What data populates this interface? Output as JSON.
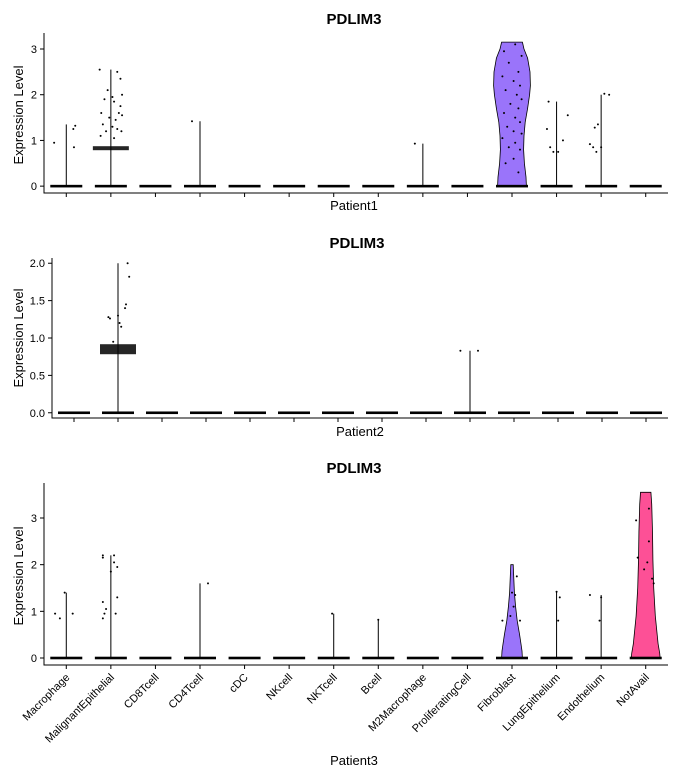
{
  "chart_data": [
    {
      "type": "violin",
      "title": "PDLIM3",
      "xlabel": "Patient1",
      "ylabel": "Expression Level",
      "ylim": [
        -0.15,
        3.35
      ],
      "yticks": [
        0,
        1,
        2,
        3
      ],
      "ytick_labels": [
        "0",
        "1",
        "2",
        "3"
      ],
      "show_category_labels": false,
      "categories": [
        "Macrophage",
        "MalignantEpithelial",
        "CD8Tcell",
        "CD4Tcell",
        "cDC",
        "NKcell",
        "NKTcell",
        "Bcell",
        "M2Macrophage",
        "ProliferatingCell",
        "Fibroblast",
        "LungEpithelium",
        "Endothelium",
        "NotAvail"
      ],
      "violins": [
        {
          "category": "Macrophage",
          "max": 1.35,
          "density": [],
          "points": [
            [
              -0.38,
              0.95
            ],
            [
              0.22,
              1.25
            ],
            [
              0.28,
              1.32
            ],
            [
              0.24,
              0.85
            ]
          ]
        },
        {
          "category": "MalignantEpithelial",
          "max": 2.55,
          "density": [],
          "points": [
            [
              -0.35,
              2.55
            ],
            [
              0.2,
              2.5
            ],
            [
              0.3,
              2.35
            ],
            [
              0.35,
              2.0
            ],
            [
              -0.1,
              2.1
            ],
            [
              0.05,
              1.95
            ],
            [
              -0.2,
              1.9
            ],
            [
              0.1,
              1.85
            ],
            [
              0.3,
              1.75
            ],
            [
              -0.3,
              1.6
            ],
            [
              0.25,
              1.6
            ],
            [
              0.35,
              1.55
            ],
            [
              -0.05,
              1.5
            ],
            [
              0.15,
              1.45
            ],
            [
              -0.25,
              1.35
            ],
            [
              0.05,
              1.3
            ],
            [
              0.2,
              1.25
            ],
            [
              0.33,
              1.2
            ],
            [
              -0.15,
              1.2
            ],
            [
              -0.32,
              1.1
            ],
            [
              0.1,
              1.05
            ]
          ]
        },
        {
          "category": "CD8Tcell",
          "max": 0,
          "density": [],
          "points": []
        },
        {
          "category": "CD4Tcell",
          "max": 1.42,
          "density": [],
          "points": [
            [
              -0.25,
              1.42
            ]
          ]
        },
        {
          "category": "cDC",
          "max": 0,
          "density": [],
          "points": []
        },
        {
          "category": "NKcell",
          "max": 0,
          "density": [],
          "points": []
        },
        {
          "category": "NKTcell",
          "max": 0,
          "density": [],
          "points": []
        },
        {
          "category": "Bcell",
          "max": 0,
          "density": [],
          "points": []
        },
        {
          "category": "M2Macrophage",
          "max": 0.93,
          "density": [],
          "points": [
            [
              -0.25,
              0.93
            ]
          ]
        },
        {
          "category": "ProliferatingCell",
          "max": 0,
          "density": [],
          "points": []
        },
        {
          "category": "Fibroblast",
          "max": 3.15,
          "density": [
            [
              3.15,
              0.52
            ],
            [
              3.0,
              0.6
            ],
            [
              2.8,
              0.78
            ],
            [
              2.5,
              0.9
            ],
            [
              2.2,
              0.92
            ],
            [
              2.0,
              0.88
            ],
            [
              1.7,
              0.78
            ],
            [
              1.4,
              0.66
            ],
            [
              1.1,
              0.6
            ],
            [
              0.8,
              0.58
            ],
            [
              0.5,
              0.62
            ],
            [
              0.2,
              0.7
            ],
            [
              0,
              0.72
            ]
          ],
          "points": [
            [
              -0.25,
              2.95
            ],
            [
              0.1,
              3.1
            ],
            [
              0.3,
              2.85
            ],
            [
              -0.1,
              2.7
            ],
            [
              0.2,
              2.5
            ],
            [
              -0.3,
              2.4
            ],
            [
              0.05,
              2.3
            ],
            [
              0.25,
              2.2
            ],
            [
              -0.2,
              2.1
            ],
            [
              0.15,
              2.0
            ],
            [
              0.3,
              1.9
            ],
            [
              -0.05,
              1.8
            ],
            [
              0.2,
              1.7
            ],
            [
              -0.25,
              1.6
            ],
            [
              0.1,
              1.5
            ],
            [
              0.25,
              1.4
            ],
            [
              -0.15,
              1.3
            ],
            [
              0.05,
              1.2
            ],
            [
              0.3,
              1.15
            ],
            [
              -0.3,
              1.05
            ],
            [
              0.1,
              0.95
            ],
            [
              -0.1,
              0.85
            ],
            [
              0.25,
              0.8
            ],
            [
              0.05,
              0.6
            ],
            [
              -0.2,
              0.5
            ],
            [
              0.2,
              0.3
            ]
          ]
        },
        {
          "category": "LungEpithelium",
          "max": 1.85,
          "density": [],
          "points": [
            [
              -0.25,
              1.85
            ],
            [
              0.35,
              1.55
            ],
            [
              -0.3,
              1.25
            ],
            [
              0.2,
              1.0
            ],
            [
              -0.2,
              0.85
            ],
            [
              0.05,
              0.75
            ],
            [
              -0.1,
              0.75
            ]
          ]
        },
        {
          "category": "Endothelium",
          "max": 2.0,
          "density": [],
          "points": [
            [
              0.1,
              2.02
            ],
            [
              0.25,
              2.0
            ],
            [
              -0.1,
              1.35
            ],
            [
              -0.2,
              1.28
            ],
            [
              -0.35,
              0.92
            ],
            [
              -0.25,
              0.85
            ],
            [
              0.0,
              0.85
            ],
            [
              -0.15,
              0.75
            ]
          ]
        },
        {
          "category": "NotAvail",
          "max": 0,
          "density": [],
          "points": []
        }
      ]
    },
    {
      "type": "violin",
      "title": "PDLIM3",
      "xlabel": "Patient2",
      "ylabel": "Expression Level",
      "ylim": [
        -0.07,
        2.07
      ],
      "yticks": [
        0,
        0.5,
        1,
        1.5,
        2
      ],
      "ytick_labels": [
        "0.0",
        "0.5",
        "1.0",
        "1.5",
        "2.0"
      ],
      "show_category_labels": false,
      "categories": [
        "Macrophage",
        "MalignantEpithelial",
        "CD8Tcell",
        "CD4Tcell",
        "cDC",
        "NKcell",
        "NKTcell",
        "Bcell",
        "M2Macrophage",
        "ProliferatingCell",
        "Fibroblast",
        "LungEpithelium",
        "Endothelium",
        "NotAvail"
      ],
      "violins": [
        {
          "category": "Macrophage",
          "max": 0,
          "density": [],
          "points": []
        },
        {
          "category": "MalignantEpithelial",
          "max": 2.0,
          "density": [],
          "points": [
            [
              0.3,
              2.0
            ],
            [
              0.35,
              1.82
            ],
            [
              0.25,
              1.45
            ],
            [
              0.22,
              1.4
            ],
            [
              0.0,
              1.3
            ],
            [
              -0.3,
              1.28
            ],
            [
              -0.25,
              1.26
            ],
            [
              0.05,
              1.2
            ],
            [
              0.1,
              1.15
            ],
            [
              -0.15,
              0.95
            ]
          ]
        },
        {
          "category": "CD8Tcell",
          "max": 0,
          "density": [],
          "points": []
        },
        {
          "category": "CD4Tcell",
          "max": 0,
          "density": [],
          "points": []
        },
        {
          "category": "cDC",
          "max": 0,
          "density": [],
          "points": []
        },
        {
          "category": "NKcell",
          "max": 0,
          "density": [],
          "points": []
        },
        {
          "category": "NKTcell",
          "max": 0,
          "density": [],
          "points": []
        },
        {
          "category": "Bcell",
          "max": 0,
          "density": [],
          "points": []
        },
        {
          "category": "M2Macrophage",
          "max": 0,
          "density": [],
          "points": []
        },
        {
          "category": "ProliferatingCell",
          "max": 0.83,
          "density": [],
          "points": [
            [
              -0.3,
              0.83
            ],
            [
              0.25,
              0.83
            ]
          ]
        },
        {
          "category": "Fibroblast",
          "max": 0,
          "density": [],
          "points": []
        },
        {
          "category": "LungEpithelium",
          "max": 0,
          "density": [],
          "points": []
        },
        {
          "category": "Endothelium",
          "max": 0,
          "density": [],
          "points": []
        },
        {
          "category": "NotAvail",
          "max": 0,
          "density": [],
          "points": []
        }
      ]
    },
    {
      "type": "violin",
      "title": "PDLIM3",
      "xlabel": "Patient3",
      "ylabel": "Expression Level",
      "ylim": [
        -0.15,
        3.75
      ],
      "yticks": [
        0,
        1,
        2,
        3
      ],
      "ytick_labels": [
        "0",
        "1",
        "2",
        "3"
      ],
      "show_category_labels": true,
      "categories": [
        "Macrophage",
        "MalignantEpithelial",
        "CD8Tcell",
        "CD4Tcell",
        "cDC",
        "NKcell",
        "NKTcell",
        "Bcell",
        "M2Macrophage",
        "ProliferatingCell",
        "Fibroblast",
        "LungEpithelium",
        "Endothelium",
        "NotAvail"
      ],
      "violins": [
        {
          "category": "Macrophage",
          "max": 1.4,
          "density": [],
          "points": [
            [
              -0.35,
              0.95
            ],
            [
              -0.2,
              0.85
            ],
            [
              -0.05,
              1.4
            ],
            [
              0.2,
              0.95
            ]
          ]
        },
        {
          "category": "MalignantEpithelial",
          "max": 2.2,
          "density": [],
          "points": [
            [
              -0.25,
              2.2
            ],
            [
              -0.25,
              2.15
            ],
            [
              0.1,
              2.2
            ],
            [
              0.1,
              2.05
            ],
            [
              0.2,
              1.95
            ],
            [
              0.0,
              1.85
            ],
            [
              -0.25,
              1.2
            ],
            [
              0.2,
              1.3
            ],
            [
              -0.15,
              1.05
            ],
            [
              -0.2,
              0.95
            ],
            [
              -0.25,
              0.85
            ],
            [
              0.15,
              0.95
            ]
          ]
        },
        {
          "category": "CD8Tcell",
          "max": 0,
          "density": [],
          "points": []
        },
        {
          "category": "CD4Tcell",
          "max": 1.6,
          "density": [],
          "points": [
            [
              0.25,
              1.6
            ]
          ]
        },
        {
          "category": "cDC",
          "max": 0,
          "density": [],
          "points": []
        },
        {
          "category": "NKcell",
          "max": 0,
          "density": [],
          "points": []
        },
        {
          "category": "NKTcell",
          "max": 0.95,
          "density": [],
          "points": [
            [
              -0.05,
              0.95
            ]
          ]
        },
        {
          "category": "Bcell",
          "max": 0.82,
          "density": [],
          "points": [
            [
              0.0,
              0.82
            ]
          ]
        },
        {
          "category": "M2Macrophage",
          "max": 0,
          "density": [],
          "points": []
        },
        {
          "category": "ProliferatingCell",
          "max": 0,
          "density": [],
          "points": []
        },
        {
          "category": "Fibroblast",
          "max": 2.0,
          "density": [
            [
              2.0,
              0.06
            ],
            [
              1.7,
              0.09
            ],
            [
              1.4,
              0.12
            ],
            [
              1.1,
              0.18
            ],
            [
              0.8,
              0.26
            ],
            [
              0.5,
              0.38
            ],
            [
              0.3,
              0.45
            ],
            [
              0.15,
              0.5
            ],
            [
              0,
              0.52
            ]
          ],
          "points": [
            [
              -0.3,
              0.8
            ],
            [
              0.0,
              1.4
            ],
            [
              0.15,
              1.75
            ],
            [
              0.1,
              1.35
            ],
            [
              0.25,
              0.8
            ],
            [
              -0.05,
              0.9
            ],
            [
              0.05,
              1.1
            ]
          ]
        },
        {
          "category": "LungEpithelium",
          "max": 1.42,
          "density": [],
          "points": [
            [
              0.0,
              1.42
            ],
            [
              0.05,
              0.8
            ],
            [
              0.1,
              1.3
            ]
          ]
        },
        {
          "category": "Endothelium",
          "max": 1.35,
          "density": [],
          "points": [
            [
              -0.35,
              1.35
            ],
            [
              -0.05,
              0.8
            ],
            [
              0.0,
              1.3
            ]
          ]
        },
        {
          "category": "NotAvail",
          "max": 3.55,
          "density": [
            [
              3.55,
              0.26
            ],
            [
              3.3,
              0.3
            ],
            [
              3.0,
              0.32
            ],
            [
              2.7,
              0.34
            ],
            [
              2.4,
              0.35
            ],
            [
              2.1,
              0.36
            ],
            [
              1.8,
              0.38
            ],
            [
              1.5,
              0.4
            ],
            [
              1.2,
              0.44
            ],
            [
              0.9,
              0.48
            ],
            [
              0.6,
              0.55
            ],
            [
              0.3,
              0.62
            ],
            [
              0.1,
              0.7
            ],
            [
              0,
              0.72
            ]
          ],
          "points": [
            [
              -0.3,
              2.95
            ],
            [
              0.1,
              3.2
            ],
            [
              -0.25,
              2.15
            ],
            [
              0.05,
              2.05
            ],
            [
              0.2,
              1.7
            ],
            [
              0.25,
              1.6
            ],
            [
              -0.05,
              1.9
            ],
            [
              0.1,
              2.5
            ]
          ]
        }
      ]
    }
  ],
  "colors": {
    "Fibroblast": "#9A74FA",
    "NotAvail": "#FD5096"
  }
}
